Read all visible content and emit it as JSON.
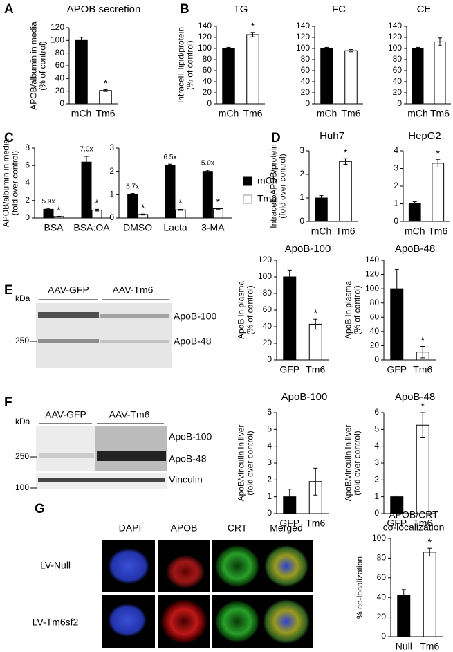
{
  "panel_labels": [
    "A",
    "B",
    "C",
    "D",
    "E",
    "F",
    "G"
  ],
  "chart_data": [
    {
      "type": "bar",
      "title": [
        "APOB secretion"
      ],
      "ylabel": [
        "APOB/albumin in media",
        "(% of control)"
      ],
      "categories": [
        "mCh",
        "Tm6"
      ],
      "values": [
        100,
        21
      ],
      "errors": [
        5,
        1.5
      ],
      "colors": [
        "#000000",
        "#ffffff"
      ],
      "stars": [
        null,
        "*"
      ],
      "ylim": [
        0,
        120
      ],
      "yticks": [
        0,
        20,
        40,
        60,
        80,
        100,
        120
      ]
    },
    {
      "type": "bar",
      "title": [
        "TG"
      ],
      "ylabel": [
        "Intracell. lipid/protein",
        "(% of control)"
      ],
      "categories": [
        "mCh",
        "Tm6"
      ],
      "values": [
        100,
        125
      ],
      "errors": [
        2,
        4
      ],
      "colors": [
        "#000000",
        "#ffffff"
      ],
      "stars": [
        null,
        "*"
      ],
      "ylim": [
        0,
        140
      ],
      "yticks": [
        0,
        20,
        40,
        60,
        80,
        100,
        120,
        140
      ]
    },
    {
      "type": "bar",
      "title": [
        "FC"
      ],
      "categories": [
        "mCh",
        "Tm6"
      ],
      "values": [
        100,
        96
      ],
      "errors": [
        2,
        2
      ],
      "colors": [
        "#000000",
        "#ffffff"
      ],
      "ylim": [
        0,
        140
      ],
      "yticks": [
        0,
        20,
        40,
        60,
        80,
        100,
        120,
        140
      ]
    },
    {
      "type": "bar",
      "title": [
        "CE"
      ],
      "categories": [
        "mCh",
        "Tm6"
      ],
      "values": [
        100,
        112
      ],
      "errors": [
        2,
        7
      ],
      "colors": [
        "#000000",
        "#ffffff"
      ],
      "ylim": [
        0,
        140
      ],
      "yticks": [
        0,
        20,
        40,
        60,
        80,
        100,
        120,
        140
      ]
    },
    {
      "type": "grouped_bar",
      "ylabel": [
        "APOB/albumin in media",
        "(fold over control)"
      ],
      "categories": [
        "BSA",
        "BSA:OA"
      ],
      "fold_labels": [
        "5.9x",
        "7.0x"
      ],
      "series": [
        {
          "color": "#000000",
          "values": [
            1.0,
            6.4
          ],
          "errors": [
            0.1,
            0.65
          ]
        },
        {
          "color": "#ffffff",
          "values": [
            0.17,
            0.9
          ],
          "errors": [
            0.03,
            0.1
          ],
          "stars": [
            "*",
            "*"
          ]
        }
      ],
      "ylim": [
        0,
        8
      ],
      "yticks": [
        0,
        2,
        4,
        6,
        8
      ]
    },
    {
      "type": "grouped_bar",
      "categories": [
        "DMSO",
        "Lacta",
        "3-MA"
      ],
      "fold_labels": [
        "6.7x",
        "6.5x",
        "5.0x"
      ],
      "legend": true,
      "series": [
        {
          "name": "mCh",
          "color": "#000000",
          "values": [
            1.0,
            2.25,
            2.0
          ],
          "errors": [
            0.05,
            0.06,
            0.05
          ]
        },
        {
          "name": "Tm6",
          "color": "#ffffff",
          "values": [
            0.15,
            0.35,
            0.4
          ],
          "errors": [
            0.02,
            0.02,
            0.02
          ],
          "stars": [
            "*",
            "*",
            "*"
          ]
        }
      ],
      "ylim": [
        0,
        3
      ],
      "yticks": [
        0,
        1,
        2,
        3
      ]
    },
    {
      "type": "bar",
      "title": [
        "Huh7"
      ],
      "ylabel": [
        "Intracell. APOB/protein",
        "(fold over control)"
      ],
      "categories": [
        "mCh",
        "Tm6"
      ],
      "values": [
        1.0,
        2.55
      ],
      "errors": [
        0.1,
        0.12
      ],
      "colors": [
        "#000000",
        "#ffffff"
      ],
      "stars": [
        null,
        "*"
      ],
      "ylim": [
        0,
        3
      ],
      "yticks": [
        0,
        1,
        2,
        3
      ]
    },
    {
      "type": "bar",
      "title": [
        "HepG2"
      ],
      "categories": [
        "mCh",
        "Tm6"
      ],
      "values": [
        1.0,
        3.3
      ],
      "errors": [
        0.12,
        0.22
      ],
      "colors": [
        "#000000",
        "#ffffff"
      ],
      "stars": [
        null,
        "*"
      ],
      "ylim": [
        0,
        4
      ],
      "yticks": [
        0,
        1,
        2,
        3,
        4
      ]
    },
    {
      "type": "bar",
      "title": [
        "ApoB-100"
      ],
      "ylabel": [
        "ApoB in plasma",
        "(% of control)"
      ],
      "categories": [
        "GFP",
        "Tm6"
      ],
      "values": [
        100,
        43
      ],
      "errors": [
        8,
        6
      ],
      "colors": [
        "#000000",
        "#ffffff"
      ],
      "stars": [
        null,
        "*"
      ],
      "ylim": [
        0,
        120
      ],
      "yticks": [
        0,
        20,
        40,
        60,
        80,
        100,
        120
      ]
    },
    {
      "type": "bar",
      "title": [
        "ApoB-48"
      ],
      "ylabel": [
        "ApoB in plasma",
        "(% of control)"
      ],
      "categories": [
        "GFP",
        "Tm6"
      ],
      "values": [
        100,
        11
      ],
      "errors": [
        27,
        8
      ],
      "colors": [
        "#000000",
        "#ffffff"
      ],
      "stars": [
        null,
        "*"
      ],
      "ylim": [
        0,
        140
      ],
      "yticks": [
        0,
        20,
        40,
        60,
        80,
        100,
        120,
        140
      ]
    },
    {
      "type": "bar",
      "title": [
        "ApoB-100"
      ],
      "ylabel": [
        "ApoB/vinculin in liver",
        "(fold over control)"
      ],
      "categories": [
        "GFP",
        "Tm6"
      ],
      "values": [
        1.0,
        1.9
      ],
      "errors": [
        0.45,
        0.8
      ],
      "colors": [
        "#000000",
        "#ffffff"
      ],
      "ylim": [
        0,
        6
      ],
      "yticks": [
        0,
        1,
        2,
        3,
        4,
        5,
        6
      ]
    },
    {
      "type": "bar",
      "title": [
        "ApoB-48"
      ],
      "ylabel": [
        "ApoB/vinculin in liver",
        "(fold over control)"
      ],
      "categories": [
        "GFP",
        "Tm6"
      ],
      "values": [
        1.0,
        5.25
      ],
      "errors": [
        0.05,
        0.75
      ],
      "colors": [
        "#000000",
        "#ffffff"
      ],
      "stars": [
        null,
        "*"
      ],
      "ylim": [
        0,
        6
      ],
      "yticks": [
        0,
        1,
        2,
        3,
        4,
        5,
        6
      ]
    },
    {
      "type": "bar",
      "title": [
        "APOB/CRT",
        "co-localization"
      ],
      "ylabel": [
        "% co-localization"
      ],
      "categories": [
        "Null",
        "Tm6"
      ],
      "values": [
        42,
        86
      ],
      "errors": [
        6,
        4
      ],
      "colors": [
        "#000000",
        "#ffffff"
      ],
      "stars": [
        null,
        "*"
      ],
      "ylim": [
        0,
        100
      ],
      "yticks": [
        0,
        20,
        40,
        60,
        80,
        100
      ]
    }
  ],
  "blots": {
    "E": {
      "unit": "kDa",
      "lanes": [
        "AAV-GFP",
        "AAV-Tm6"
      ],
      "markers": [
        250
      ],
      "bands": [
        "ApoB-100",
        "ApoB-48"
      ]
    },
    "F": {
      "unit": "kDa",
      "lanes": [
        "AAV-GFP",
        "AAV-Tm6"
      ],
      "markers": [
        250,
        100
      ],
      "bands": [
        "ApoB-100",
        "ApoB-48",
        "Vinculin"
      ]
    }
  },
  "images": {
    "columns": [
      "DAPI",
      "APOB",
      "CRT",
      "Merged"
    ],
    "rows": [
      "LV-Null",
      "LV-Tm6sf2"
    ]
  }
}
